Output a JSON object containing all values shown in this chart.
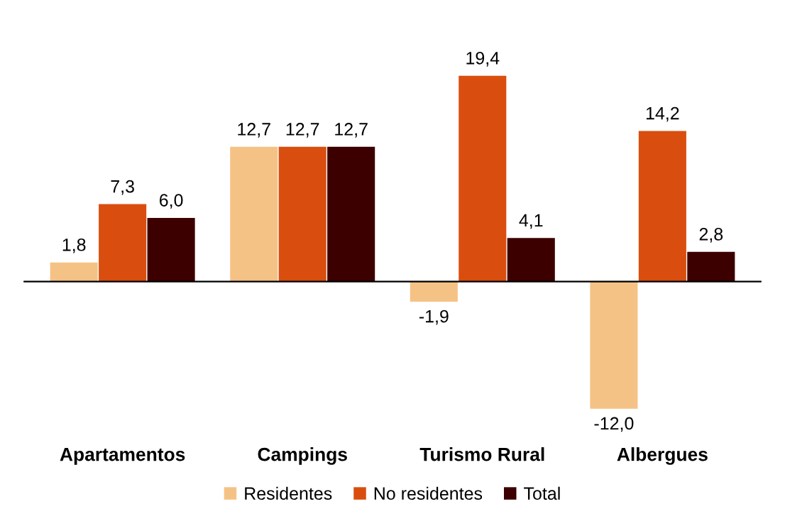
{
  "chart_data": {
    "type": "bar",
    "categories": [
      "Apartamentos",
      "Campings",
      "Turismo Rural",
      "Albergues"
    ],
    "series": [
      {
        "name": "Residentes",
        "color": "#f5c285",
        "values": [
          1.8,
          12.7,
          -1.9,
          -12.0
        ],
        "value_labels": [
          "1,8",
          "12,7",
          "-1,9",
          "-12,0"
        ]
      },
      {
        "name": "No residentes",
        "color": "#d94e0f",
        "values": [
          7.3,
          12.7,
          19.4,
          14.2
        ],
        "value_labels": [
          "7,3",
          "12,7",
          "19,4",
          "14,2"
        ]
      },
      {
        "name": "Total",
        "color": "#3d0000",
        "values": [
          6.0,
          12.7,
          4.1,
          2.8
        ],
        "value_labels": [
          "6,0",
          "12,7",
          "4,1",
          "2,8"
        ]
      }
    ],
    "legend": "bottom",
    "grid": false
  }
}
